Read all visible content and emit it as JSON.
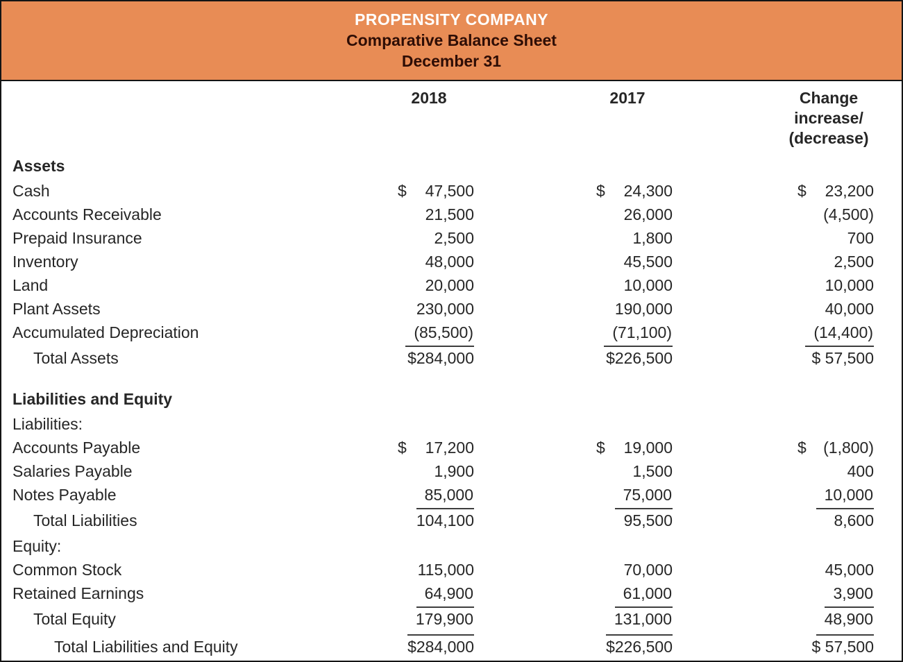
{
  "title_block": {
    "company": "PROPENSITY COMPANY",
    "report": "Comparative Balance Sheet",
    "date": "December 31"
  },
  "column_headers": {
    "y2018": "2018",
    "y2017": "2017",
    "change": [
      "Change",
      "increase/",
      "(decrease)"
    ]
  },
  "colors": {
    "accent_band": "#E88C55",
    "band_title": "#FFFFFF",
    "band_subtitle": "#2E0D05",
    "body_text": "#262626",
    "rule_line": "#3D3D3D"
  },
  "rows": [
    {
      "kind": "section",
      "label": "Assets"
    },
    {
      "kind": "item",
      "label": "Cash",
      "cells": [
        {
          "cur": "$",
          "amt": "47,500"
        },
        {
          "cur": "$",
          "amt": "24,300"
        },
        {
          "cur": "$",
          "amt": "23,200"
        }
      ]
    },
    {
      "kind": "item",
      "label": "Accounts Receivable",
      "cells": [
        {
          "amt": "21,500"
        },
        {
          "amt": "26,000"
        },
        {
          "amt": "(4,500)"
        }
      ]
    },
    {
      "kind": "item",
      "label": "Prepaid Insurance",
      "cells": [
        {
          "amt": "2,500"
        },
        {
          "amt": "1,800"
        },
        {
          "amt": "700"
        }
      ]
    },
    {
      "kind": "item",
      "label": "Inventory",
      "cells": [
        {
          "amt": "48,000"
        },
        {
          "amt": "45,500"
        },
        {
          "amt": "2,500"
        }
      ]
    },
    {
      "kind": "item",
      "label": "Land",
      "cells": [
        {
          "amt": "20,000"
        },
        {
          "amt": "10,000"
        },
        {
          "amt": "10,000"
        }
      ]
    },
    {
      "kind": "item",
      "label": "Plant Assets",
      "cells": [
        {
          "amt": "230,000"
        },
        {
          "amt": "190,000"
        },
        {
          "amt": "40,000"
        }
      ]
    },
    {
      "kind": "item",
      "label": "Accumulated Depreciation",
      "cells": [
        {
          "amt": "(85,500)",
          "underline": true
        },
        {
          "amt": "(71,100)",
          "underline": true
        },
        {
          "amt": "(14,400)",
          "underline": true
        }
      ]
    },
    {
      "kind": "total",
      "label": "Total Assets",
      "indent": 1,
      "cells": [
        {
          "amt": "$284,000"
        },
        {
          "amt": "$226,500"
        },
        {
          "amt": "$ 57,500"
        }
      ]
    },
    {
      "kind": "section",
      "label": "Liabilities and Equity",
      "space_before": true
    },
    {
      "kind": "item",
      "label": "Liabilities:",
      "cells": []
    },
    {
      "kind": "item",
      "label": "Accounts Payable",
      "cells": [
        {
          "cur": "$",
          "amt": "17,200"
        },
        {
          "cur": "$",
          "amt": "19,000"
        },
        {
          "cur": "$",
          "amt": "(1,800)"
        }
      ]
    },
    {
      "kind": "item",
      "label": "Salaries Payable",
      "cells": [
        {
          "amt": "1,900"
        },
        {
          "amt": "1,500"
        },
        {
          "amt": "400"
        }
      ]
    },
    {
      "kind": "item",
      "label": "Notes Payable",
      "cells": [
        {
          "amt": "85,000",
          "underline": true
        },
        {
          "amt": "75,000",
          "underline": true
        },
        {
          "amt": "10,000",
          "underline": true
        }
      ]
    },
    {
      "kind": "total",
      "label": "Total Liabilities",
      "indent": 1,
      "cells": [
        {
          "amt": "104,100"
        },
        {
          "amt": "95,500"
        },
        {
          "amt": "8,600"
        }
      ]
    },
    {
      "kind": "item",
      "label": "Equity:",
      "cells": []
    },
    {
      "kind": "item",
      "label": "Common Stock",
      "cells": [
        {
          "amt": "115,000"
        },
        {
          "amt": "70,000"
        },
        {
          "amt": "45,000"
        }
      ]
    },
    {
      "kind": "item",
      "label": "Retained Earnings",
      "cells": [
        {
          "amt": "64,900",
          "underline": true
        },
        {
          "amt": "61,000",
          "underline": true
        },
        {
          "amt": "3,900",
          "underline": true
        }
      ]
    },
    {
      "kind": "total",
      "label": "Total Equity",
      "indent": 1,
      "cells": [
        {
          "amt": "179,900",
          "underline": true
        },
        {
          "amt": "131,000",
          "underline": true
        },
        {
          "amt": "48,900",
          "underline": true
        }
      ]
    },
    {
      "kind": "total",
      "label": "Total Liabilities and Equity",
      "indent": 2,
      "cells": [
        {
          "amt": "$284,000"
        },
        {
          "amt": "$226,500"
        },
        {
          "amt": "$ 57,500"
        }
      ]
    }
  ]
}
